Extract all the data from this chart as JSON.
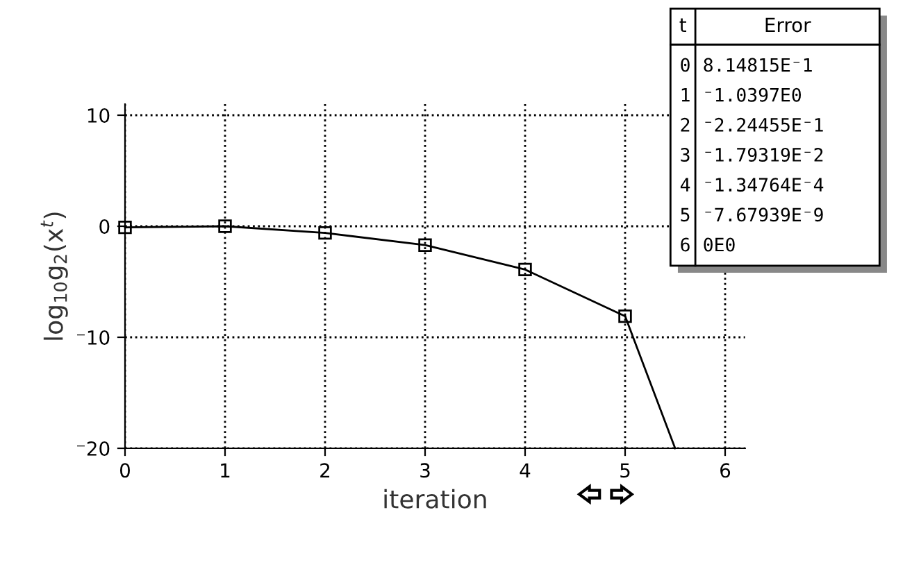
{
  "chart_data": {
    "type": "line",
    "xlabel": "iteration",
    "ylabel": "log$_{10}$g$_{2}$(x$^{t}$)",
    "series": [
      {
        "color": "#000000",
        "x": [
          0,
          1,
          2,
          3,
          4,
          5
        ],
        "values": [
          -0.1,
          0,
          -0.6,
          -1.7,
          -3.9,
          -8.1
        ],
        "marker": "square"
      },
      {
        "color": "#000000",
        "x": [
          5,
          5.5
        ],
        "values": [
          -8.1,
          -20
        ],
        "marker": "none"
      }
    ],
    "xlim": [
      0,
      6.2
    ],
    "ylim": [
      -20,
      11
    ],
    "xticks": [
      0,
      1,
      2,
      3,
      4,
      5,
      6
    ],
    "yticks": [
      {
        "value": -20,
        "label": "⁻20"
      },
      {
        "value": -10,
        "label": "⁻10"
      },
      0,
      10
    ],
    "grid": true,
    "line_style": "solid",
    "annotations": [
      "t",
      "Error",
      "0",
      "8.14815E⁻1",
      "1",
      "⁻1.0397E0",
      "2",
      "⁻2.24455E⁻1",
      "3",
      "⁻1.79319E⁻2",
      "4",
      "⁻1.34764E⁻4",
      "5",
      "⁻7.67939E⁻9",
      "6",
      "0E0"
    ]
  }
}
